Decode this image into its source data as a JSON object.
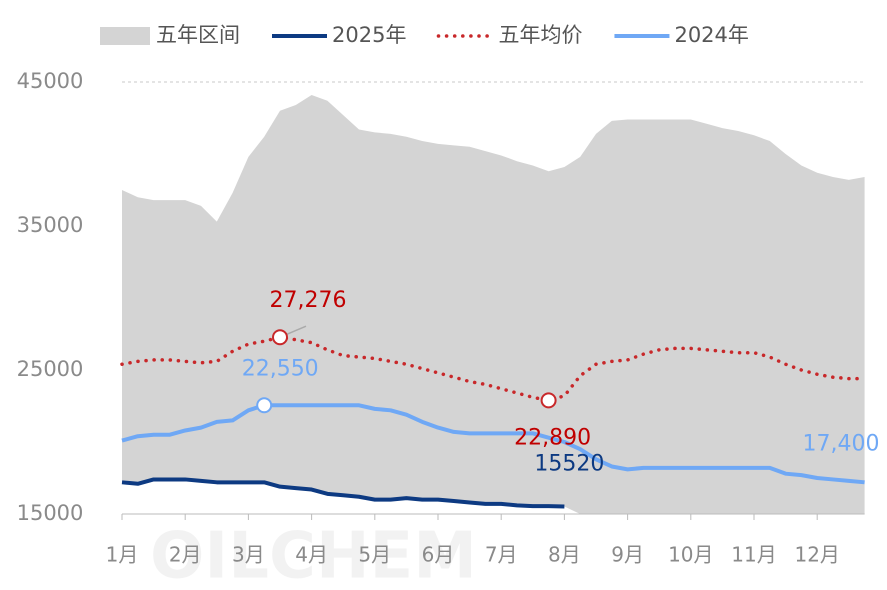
{
  "chart_data": {
    "type": "line",
    "watermark": "OILCHEM",
    "categories": [
      "1月",
      null,
      null,
      null,
      "2月",
      null,
      null,
      null,
      "3月",
      null,
      null,
      null,
      "4月",
      null,
      null,
      null,
      "5月",
      null,
      null,
      null,
      "6月",
      null,
      null,
      null,
      "7月",
      null,
      null,
      null,
      "8月",
      null,
      null,
      null,
      "9月",
      null,
      null,
      null,
      "10月",
      null,
      null,
      null,
      "11月",
      null,
      null,
      null,
      "12月",
      null,
      null,
      null
    ],
    "ylim": [
      15000,
      45000
    ],
    "yticks": [
      15000,
      25000,
      35000,
      45000
    ],
    "grid": "top",
    "band": {
      "name": "五年区间",
      "color": "#d4d4d4",
      "high": [
        37500,
        37000,
        36800,
        36800,
        36800,
        36400,
        35300,
        37300,
        39800,
        41200,
        43000,
        43400,
        44100,
        43700,
        42700,
        41700,
        41500,
        41400,
        41200,
        40900,
        40700,
        40600,
        40500,
        40200,
        39900,
        39500,
        39200,
        38800,
        39100,
        39800,
        41400,
        42300,
        42400,
        42400,
        42400,
        42400,
        42400,
        42100,
        41800,
        41600,
        41300,
        40900,
        40000,
        39200,
        38700,
        38400,
        38200,
        38400
      ],
      "low": [
        17200,
        17100,
        17400,
        17400,
        17400,
        17300,
        17200,
        17200,
        17200,
        17200,
        16900,
        16800,
        16700,
        16400,
        16300,
        16200,
        16000,
        16000,
        16100,
        16000,
        16000,
        15900,
        15800,
        15700,
        15700,
        15600,
        15550,
        15550,
        15520,
        15000,
        15000,
        15000,
        15000,
        15000,
        15000,
        15000,
        15000,
        15000,
        15000,
        15000,
        15000,
        15000,
        15000,
        15000,
        15000,
        15000,
        15000,
        15000
      ]
    },
    "series": [
      {
        "name": "2025年",
        "color": "#0d3a82",
        "style": "solid",
        "values": [
          17200,
          17100,
          17400,
          17400,
          17400,
          17300,
          17200,
          17200,
          17200,
          17200,
          16900,
          16800,
          16700,
          16400,
          16300,
          16200,
          16000,
          16000,
          16100,
          16000,
          16000,
          15900,
          15800,
          15700,
          15700,
          15600,
          15550,
          15550,
          15520,
          null,
          null,
          null,
          null,
          null,
          null,
          null,
          null,
          null,
          null,
          null,
          null,
          null,
          null,
          null,
          null,
          null,
          null,
          null
        ],
        "value_labels": [
          null,
          null,
          null,
          null,
          null,
          null,
          null,
          null,
          null,
          null,
          null,
          null,
          null,
          null,
          null,
          null,
          null,
          null,
          null,
          null,
          null,
          null,
          null,
          null,
          null,
          null,
          null,
          null,
          "15520",
          null,
          null,
          null,
          null,
          null,
          null,
          null,
          null,
          null,
          null,
          null,
          null,
          null,
          null,
          null,
          null,
          null,
          null,
          null
        ]
      },
      {
        "name": "五年均价",
        "color": "#c8282a",
        "style": "dotted",
        "values": [
          25400,
          25600,
          25700,
          25700,
          25600,
          25500,
          25600,
          26300,
          26800,
          27000,
          27276,
          27100,
          26900,
          26400,
          26000,
          25900,
          25800,
          25600,
          25400,
          25100,
          24800,
          24500,
          24200,
          24000,
          23700,
          23400,
          23100,
          22890,
          23200,
          24600,
          25400,
          25600,
          25700,
          26100,
          26400,
          26500,
          26500,
          26400,
          26300,
          26200,
          26200,
          25900,
          25400,
          25000,
          24700,
          24500,
          24400,
          24400
        ],
        "value_labels": [
          null,
          null,
          null,
          null,
          null,
          null,
          null,
          null,
          null,
          null,
          "27,276",
          null,
          null,
          null,
          null,
          null,
          null,
          null,
          null,
          null,
          null,
          null,
          null,
          null,
          null,
          null,
          null,
          "22,890",
          null,
          null,
          null,
          null,
          null,
          null,
          null,
          null,
          null,
          null,
          null,
          null,
          null,
          null,
          null,
          null,
          null,
          null,
          null,
          null
        ]
      },
      {
        "name": "2024年",
        "color": "#6fa8f5",
        "style": "solid",
        "values": [
          20100,
          20400,
          20500,
          20500,
          20800,
          21000,
          21400,
          21500,
          22200,
          22550,
          22550,
          22550,
          22550,
          22550,
          22550,
          22550,
          22300,
          22200,
          21900,
          21400,
          21000,
          20700,
          20600,
          20600,
          20600,
          20600,
          20600,
          20300,
          20000,
          19500,
          18800,
          18300,
          18100,
          18200,
          18200,
          18200,
          18200,
          18200,
          18200,
          18200,
          18200,
          18200,
          17800,
          17700,
          17500,
          17400,
          17300,
          17200
        ],
        "value_labels": [
          null,
          null,
          null,
          null,
          null,
          null,
          null,
          null,
          null,
          "22,550",
          null,
          null,
          null,
          null,
          null,
          null,
          null,
          null,
          null,
          null,
          null,
          null,
          null,
          null,
          null,
          null,
          null,
          null,
          null,
          null,
          null,
          null,
          null,
          null,
          null,
          null,
          null,
          null,
          null,
          null,
          null,
          null,
          null,
          null,
          null,
          "17,400",
          null,
          null
        ]
      }
    ]
  }
}
